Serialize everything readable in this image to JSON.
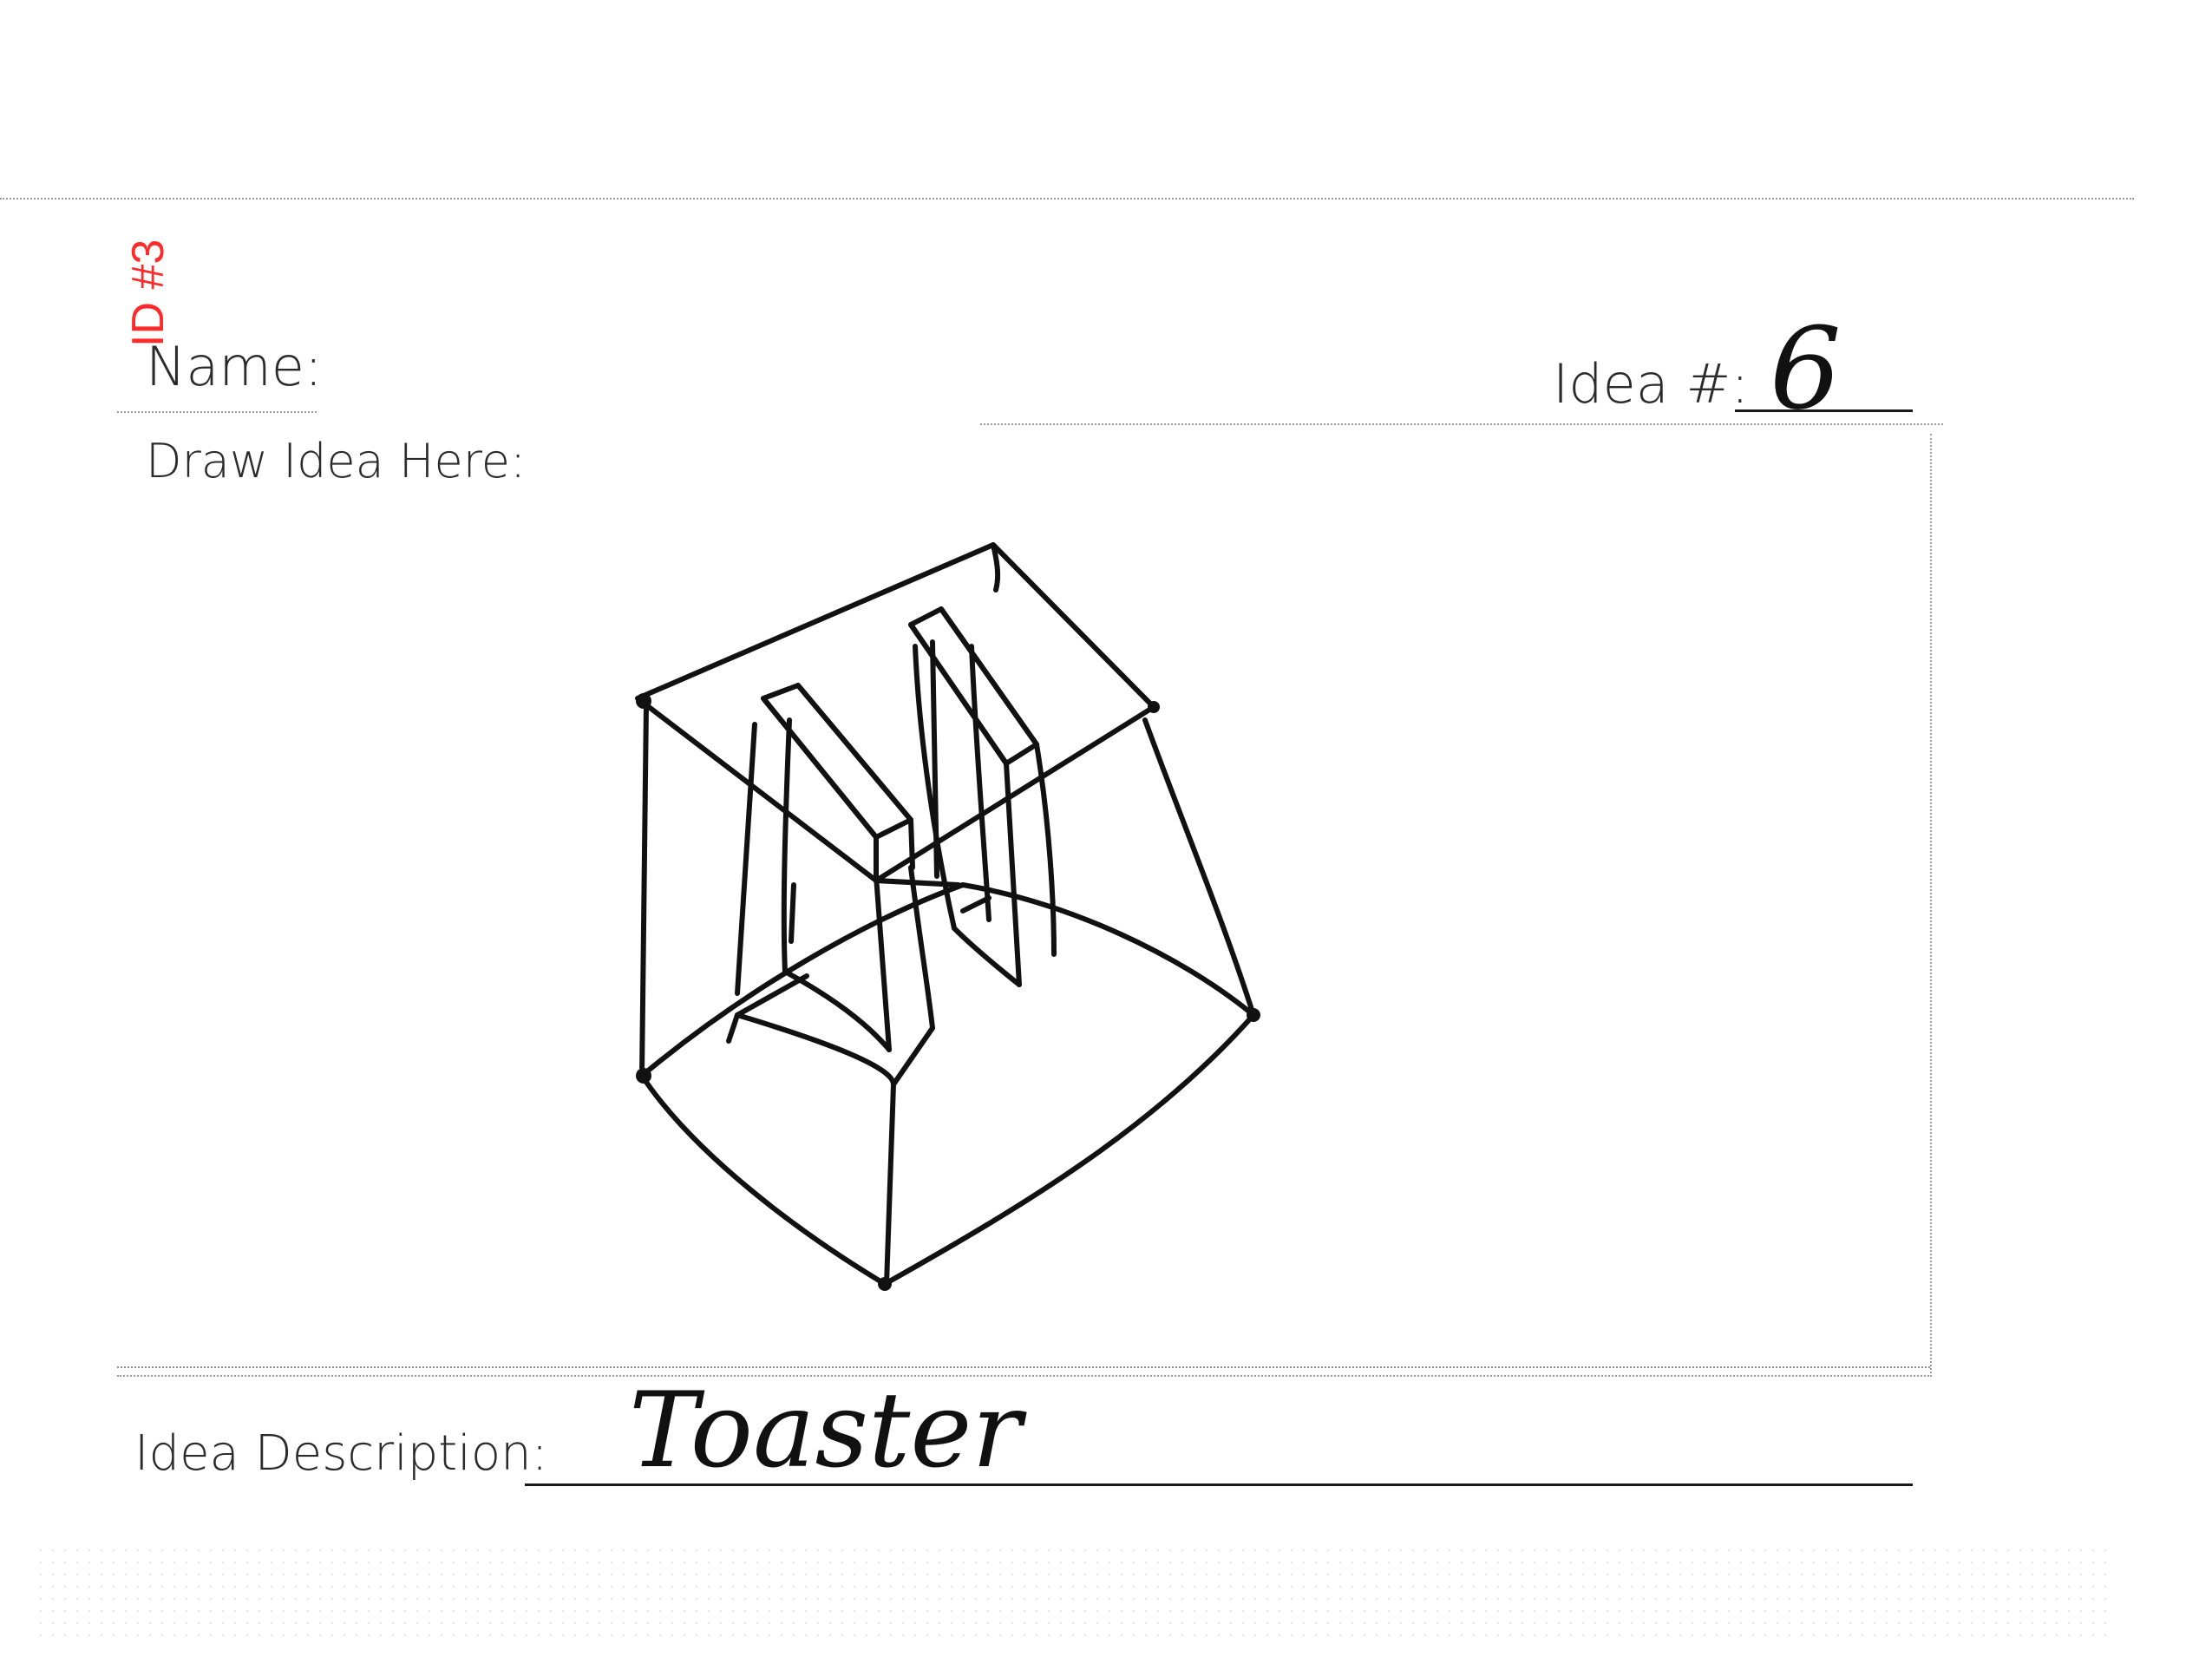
{
  "form": {
    "id_stamp": "ID #3",
    "name_label": "Name:",
    "idea_number_label": "Idea #:",
    "idea_number_value": "6",
    "draw_label": "Draw Idea Here:",
    "description_label": "Idea Description:",
    "description_value": "Toaster"
  },
  "colors": {
    "stamp": "#ff2a2a",
    "ink": "#111111",
    "print": "#2a2a2a"
  },
  "icons": {
    "sketch": "toaster-sketch"
  }
}
